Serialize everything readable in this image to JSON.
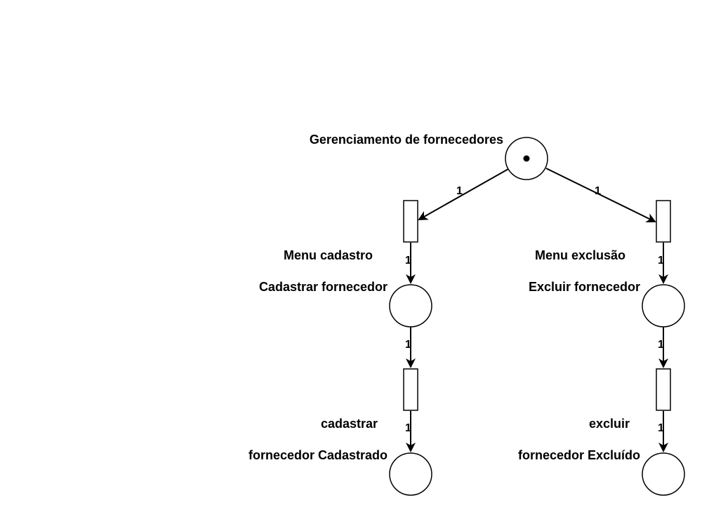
{
  "places": {
    "root": {
      "label": "Gerenciamento de fornecedores",
      "tokens": 1
    },
    "cad_place": {
      "label": "Cadastrar fornecedor"
    },
    "cad_final": {
      "label": "fornecedor Cadastrado"
    },
    "exc_place": {
      "label": "Excluir fornecedor"
    },
    "exc_final": {
      "label": "fornecedor Excluído"
    }
  },
  "transitions": {
    "menu_cad": {
      "label": "Menu cadastro"
    },
    "cad": {
      "label": "cadastrar"
    },
    "menu_exc": {
      "label": "Menu exclusão"
    },
    "exc": {
      "label": "excluir"
    }
  },
  "arcs": [
    {
      "id": "root-menu_cad",
      "weight": "1"
    },
    {
      "id": "root-menu_exc",
      "weight": "1"
    },
    {
      "id": "menu_cad-cad_place",
      "weight": "1"
    },
    {
      "id": "cad_place-cad",
      "weight": "1"
    },
    {
      "id": "cad-cad_final",
      "weight": "1"
    },
    {
      "id": "menu_exc-exc_place",
      "weight": "1"
    },
    {
      "id": "exc_place-exc",
      "weight": "1"
    },
    {
      "id": "exc-exc_final",
      "weight": "1"
    }
  ]
}
